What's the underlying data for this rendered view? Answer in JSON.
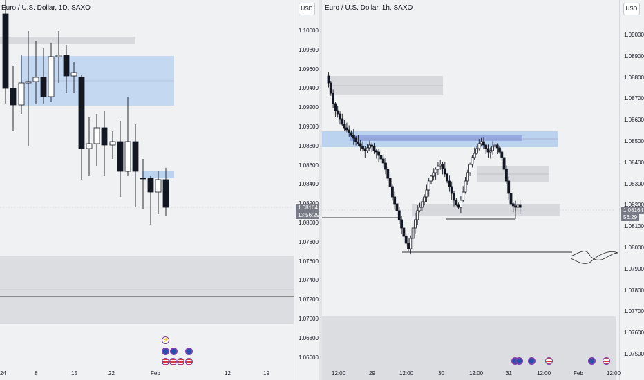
{
  "left_chart": {
    "title": "Euro / U.S. Dollar, 1D, SAXO",
    "currency": "USD",
    "price_ticks": [
      "1.10000",
      "1.09800",
      "1.09600",
      "1.09400",
      "1.09200",
      "1.09000",
      "1.08800",
      "1.08600",
      "1.08400",
      "1.08200",
      "1.08000",
      "1.07800",
      "1.07600",
      "1.07400",
      "1.07200",
      "1.07000",
      "1.06800",
      "1.06600"
    ],
    "last_price": "1.08164",
    "countdown": "13:56:29",
    "x_labels": [
      "24",
      "8",
      "15",
      "22",
      "Feb",
      "12",
      "19"
    ]
  },
  "right_chart": {
    "title": "Euro / U.S. Dollar, 1h, SAXO",
    "currency": "USD",
    "price_ticks": [
      "1.09000",
      "1.08900",
      "1.08800",
      "1.08700",
      "1.08600",
      "1.08500",
      "1.08400",
      "1.08300",
      "1.08200",
      "1.08100",
      "1.08000",
      "1.07900",
      "1.07800",
      "1.07700",
      "1.07600",
      "1.07500"
    ],
    "last_price": "1.08164",
    "countdown": "56:29",
    "x_labels": [
      "12:00",
      "29",
      "12:00",
      "30",
      "12:00",
      "31",
      "12:00",
      "Feb",
      "12:00"
    ]
  },
  "colors": {
    "bull": "#ffffff",
    "bear": "#131722",
    "zone_blue": "#bcd3f0",
    "zone_gray": "#d8d9dc",
    "pane_bg": "#f0f1f3"
  },
  "icons": [
    "lightning-icon",
    "eu-flag-icon",
    "us-flag-icon"
  ]
}
